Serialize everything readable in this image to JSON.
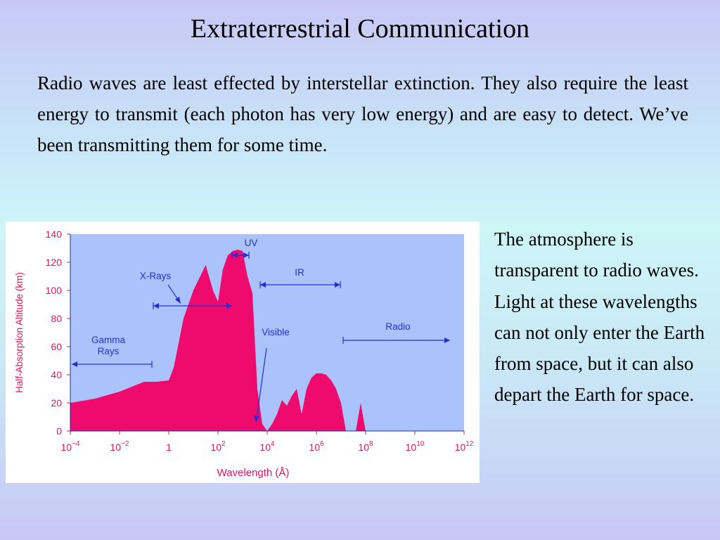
{
  "slide": {
    "title": "Extraterrestrial Communication",
    "intro": "Radio waves are least effected by interstellar extinction.  They also require the least energy to transmit (each photon has very low energy) and are easy to detect.  We’ve been transmitting them for some time.",
    "side_text": "The atmosphere is transparent to radio waves.  Light at these wavelengths can not only enter the Earth from space, but it can also depart the Earth for space."
  },
  "chart_data": {
    "type": "area",
    "title": "",
    "xlabel": "Wavelength (Å)",
    "ylabel": "Half-Absorption Altitude (km)",
    "xscale": "log",
    "xlim_log10": [
      -4,
      12
    ],
    "ylim": [
      0,
      140
    ],
    "x_ticks": [
      {
        "exp": -4,
        "base": "10",
        "sup": "−4"
      },
      {
        "exp": -2,
        "base": "10",
        "sup": "−2"
      },
      {
        "exp": 0,
        "base": "1",
        "sup": ""
      },
      {
        "exp": 2,
        "base": "10",
        "sup": "2"
      },
      {
        "exp": 4,
        "base": "10",
        "sup": "4"
      },
      {
        "exp": 6,
        "base": "10",
        "sup": "6"
      },
      {
        "exp": 8,
        "base": "10",
        "sup": "8"
      },
      {
        "exp": 10,
        "base": "10",
        "sup": "10"
      },
      {
        "exp": 12,
        "base": "10",
        "sup": "12"
      }
    ],
    "y_ticks": [
      "0",
      "20",
      "40",
      "60",
      "80",
      "100",
      "120",
      "140"
    ],
    "series": [
      {
        "name": "",
        "x_log10": [
          -4.0,
          -3.0,
          -2.0,
          -1.0,
          -0.5,
          0.0,
          0.2,
          0.6,
          1.0,
          1.5,
          1.8,
          2.0,
          2.2,
          2.4,
          2.6,
          2.8,
          3.0,
          3.2,
          3.4,
          3.6,
          3.8,
          4.0,
          4.2,
          4.4,
          4.6,
          4.8,
          5.0,
          5.2,
          5.4,
          5.6,
          5.8,
          6.0,
          6.2,
          6.4,
          6.6,
          6.8,
          7.0,
          7.2,
          7.4,
          7.6,
          7.8,
          8.0,
          8.2,
          8.4,
          9.0,
          10.0,
          11.0,
          12.0
        ],
        "y": [
          20,
          23,
          28,
          35,
          35,
          36,
          45,
          80,
          100,
          118,
          100,
          92,
          115,
          125,
          128,
          129,
          128,
          110,
          98,
          30,
          5,
          0,
          5,
          12,
          22,
          18,
          25,
          30,
          12,
          30,
          38,
          41,
          41,
          40,
          36,
          30,
          20,
          0,
          0,
          0,
          20,
          0,
          0,
          0,
          0,
          0,
          0,
          0
        ]
      }
    ],
    "region_labels": [
      {
        "name": "Gamma Rays",
        "from_log10": -4,
        "to_log10": -0.8
      },
      {
        "name": "X-Rays",
        "from_log10": -0.2,
        "to_log10": 2.6
      },
      {
        "name": "UV",
        "from_log10": 2.6,
        "to_log10": 3.6
      },
      {
        "name": "IR",
        "from_log10": 4.0,
        "to_log10": 7.0
      },
      {
        "name": "Visible",
        "at_log10": 3.7
      },
      {
        "name": "Radio",
        "from_log10": 7.0,
        "to_log10": 12.0
      }
    ],
    "colors": {
      "fill": "#ee0b6d",
      "plot_background": "#aac3fb",
      "axis_text": "#e3135f",
      "annotation": "#2b2bd6"
    }
  }
}
